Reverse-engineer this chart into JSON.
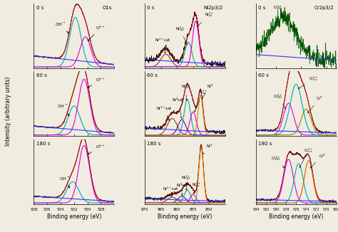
{
  "fig_width": 4.74,
  "fig_height": 3.26,
  "dpi": 100,
  "background": "#f0ece0",
  "xlabel": "Binding energy (eV)",
  "ylabel": "Intensity (arbitrary units)",
  "o1s_xlim": [
    538,
    526
  ],
  "ni_xlim": [
    870,
    845
  ],
  "cr_xlim": [
    584,
    568
  ],
  "o1s_xticks": [
    538,
    536,
    534,
    532,
    530,
    528
  ],
  "ni_xticks": [
    870,
    865,
    860,
    855,
    850
  ],
  "cr_xticks": [
    584,
    582,
    580,
    578,
    576,
    574,
    572,
    570,
    568
  ]
}
